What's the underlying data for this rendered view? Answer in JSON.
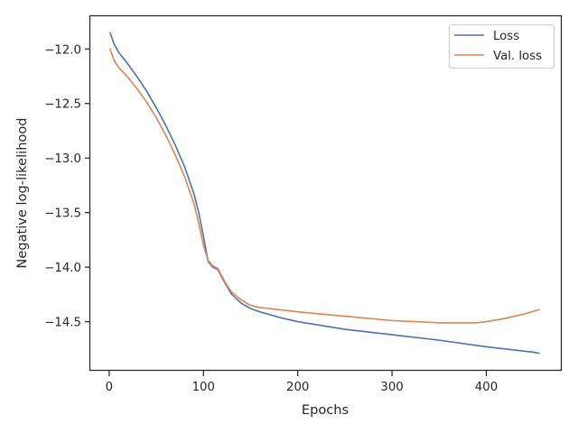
{
  "chart_data": {
    "type": "line",
    "title": "",
    "xlabel": "Epochs",
    "ylabel": "Negative log-likelihood",
    "xlim": [
      -20,
      480
    ],
    "ylim": [
      -14.95,
      -11.7
    ],
    "xticks": [
      0,
      100,
      200,
      300,
      400
    ],
    "yticks": [
      -12.0,
      -12.5,
      -13.0,
      -13.5,
      -14.0,
      -14.5
    ],
    "xtick_labels": [
      "0",
      "100",
      "200",
      "300",
      "400"
    ],
    "ytick_labels": [
      "−12.0",
      "−12.5",
      "−13.0",
      "−13.5",
      "−14.0",
      "−14.5"
    ],
    "grid": false,
    "legend_position": "top-right",
    "series": [
      {
        "name": "Loss",
        "color": "#4c72b0",
        "x": [
          1,
          5,
          10,
          20,
          30,
          40,
          50,
          60,
          70,
          80,
          90,
          95,
          100,
          105,
          110,
          115,
          120,
          125,
          130,
          140,
          150,
          160,
          180,
          200,
          250,
          300,
          350,
          400,
          450,
          456
        ],
        "y": [
          -11.85,
          -11.95,
          -12.03,
          -12.14,
          -12.26,
          -12.39,
          -12.54,
          -12.7,
          -12.88,
          -13.08,
          -13.33,
          -13.5,
          -13.72,
          -13.95,
          -14.0,
          -14.02,
          -14.1,
          -14.18,
          -14.25,
          -14.33,
          -14.38,
          -14.41,
          -14.46,
          -14.5,
          -14.57,
          -14.62,
          -14.67,
          -14.73,
          -14.78,
          -14.79
        ]
      },
      {
        "name": "Val. loss",
        "color": "#dd8452",
        "x": [
          1,
          5,
          10,
          20,
          30,
          40,
          50,
          60,
          70,
          80,
          90,
          95,
          100,
          105,
          110,
          115,
          120,
          125,
          130,
          140,
          150,
          160,
          180,
          200,
          250,
          300,
          350,
          380,
          390,
          400,
          420,
          440,
          456
        ],
        "y": [
          -12.0,
          -12.1,
          -12.17,
          -12.26,
          -12.37,
          -12.49,
          -12.63,
          -12.79,
          -12.97,
          -13.17,
          -13.42,
          -13.6,
          -13.8,
          -13.94,
          -13.99,
          -14.01,
          -14.09,
          -14.17,
          -14.23,
          -14.3,
          -14.35,
          -14.37,
          -14.39,
          -14.41,
          -14.45,
          -14.49,
          -14.51,
          -14.51,
          -14.51,
          -14.5,
          -14.47,
          -14.43,
          -14.39
        ]
      }
    ]
  }
}
